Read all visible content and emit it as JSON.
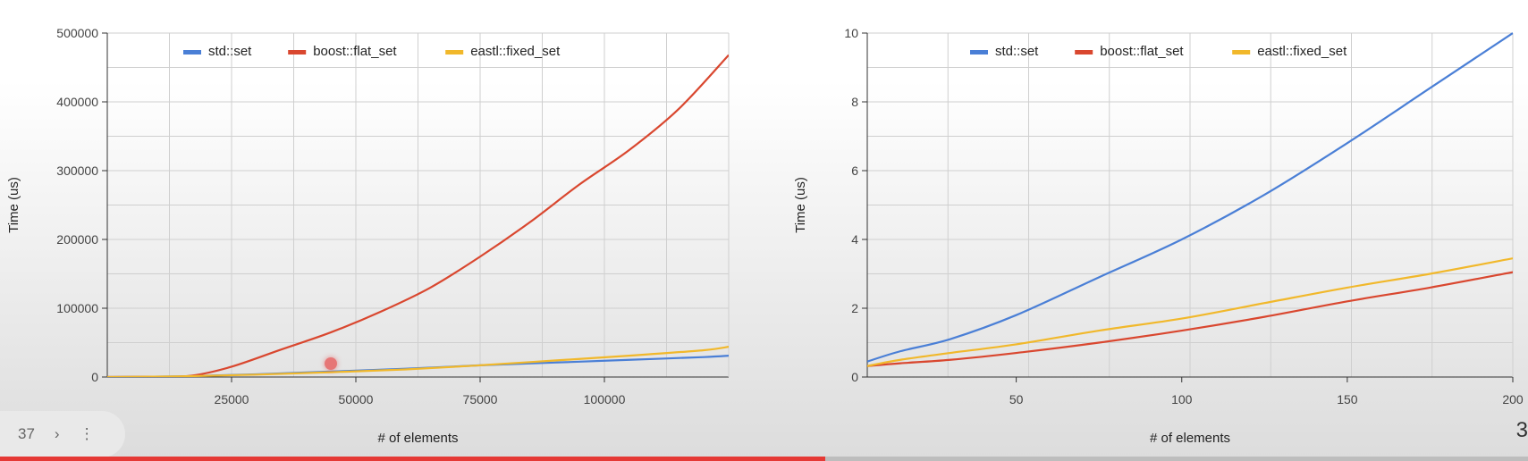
{
  "colors": {
    "std_set": "#4a7fd6",
    "boost_flat_set": "#d9472f",
    "eastl_fixed_set": "#f1b82b",
    "progress": "#e53935"
  },
  "player": {
    "count": "37",
    "next_icon": "chevron-right-icon",
    "more_icon": "more-vert-icon",
    "progress_fraction": 0.54
  },
  "edge_glyph": "3",
  "chart_data": [
    {
      "type": "line",
      "title": "",
      "xlabel": "# of elements",
      "ylabel": "Time (us)",
      "xlim": [
        0,
        125000
      ],
      "ylim": [
        0,
        500000
      ],
      "xticks": [
        25000,
        50000,
        75000,
        100000
      ],
      "xtick_labels": [
        "25000",
        "50000",
        "75000",
        "100000"
      ],
      "yticks": [
        0,
        100000,
        200000,
        300000,
        400000,
        500000
      ],
      "ytick_labels": [
        "0",
        "100000",
        "200000",
        "300000",
        "400000",
        "500000"
      ],
      "grid": true,
      "legend_position": "top",
      "series": [
        {
          "name": "std::set",
          "color_key": "std_set",
          "x": [
            0,
            15000,
            30000,
            45000,
            60000,
            75000,
            90000,
            105000,
            120000,
            125000
          ],
          "y": [
            0,
            1000,
            4000,
            8000,
            12000,
            17000,
            21000,
            25000,
            29000,
            31000
          ]
        },
        {
          "name": "boost::flat_set",
          "color_key": "boost_flat_set",
          "x": [
            0,
            10000,
            17000,
            25000,
            35000,
            45000,
            55000,
            65000,
            75000,
            85000,
            95000,
            105000,
            115000,
            125000
          ],
          "y": [
            0,
            500,
            2000,
            15000,
            40000,
            65000,
            95000,
            130000,
            175000,
            225000,
            280000,
            330000,
            390000,
            468000
          ]
        },
        {
          "name": "eastl::fixed_set",
          "color_key": "eastl_fixed_set",
          "x": [
            0,
            15000,
            30000,
            45000,
            60000,
            75000,
            90000,
            105000,
            120000,
            125000
          ],
          "y": [
            0,
            1000,
            3500,
            7000,
            11000,
            17000,
            24000,
            31000,
            39000,
            44000
          ]
        }
      ]
    },
    {
      "type": "line",
      "title": "",
      "xlabel": "# of elements",
      "ylabel": "Time (us)",
      "xlim": [
        5,
        200
      ],
      "ylim": [
        0,
        10
      ],
      "xticks": [
        50,
        100,
        150,
        200
      ],
      "xtick_labels": [
        "50",
        "100",
        "150",
        "200"
      ],
      "yticks": [
        0,
        2,
        4,
        6,
        8,
        10
      ],
      "ytick_labels": [
        "0",
        "2",
        "4",
        "6",
        "8",
        "10"
      ],
      "grid": true,
      "legend_position": "top",
      "series": [
        {
          "name": "std::set",
          "color_key": "std_set",
          "x": [
            5,
            15,
            30,
            50,
            75,
            100,
            125,
            150,
            175,
            200
          ],
          "y": [
            0.45,
            0.75,
            1.1,
            1.8,
            2.9,
            4.0,
            5.3,
            6.8,
            8.4,
            10.0
          ]
        },
        {
          "name": "boost::flat_set",
          "color_key": "boost_flat_set",
          "x": [
            5,
            15,
            30,
            50,
            75,
            100,
            125,
            150,
            175,
            200
          ],
          "y": [
            0.32,
            0.4,
            0.5,
            0.7,
            1.0,
            1.35,
            1.75,
            2.2,
            2.6,
            3.05
          ]
        },
        {
          "name": "eastl::fixed_set",
          "color_key": "eastl_fixed_set",
          "x": [
            5,
            15,
            30,
            50,
            75,
            100,
            125,
            150,
            175,
            200
          ],
          "y": [
            0.32,
            0.5,
            0.7,
            0.95,
            1.35,
            1.7,
            2.15,
            2.6,
            3.0,
            3.45
          ]
        }
      ]
    }
  ]
}
